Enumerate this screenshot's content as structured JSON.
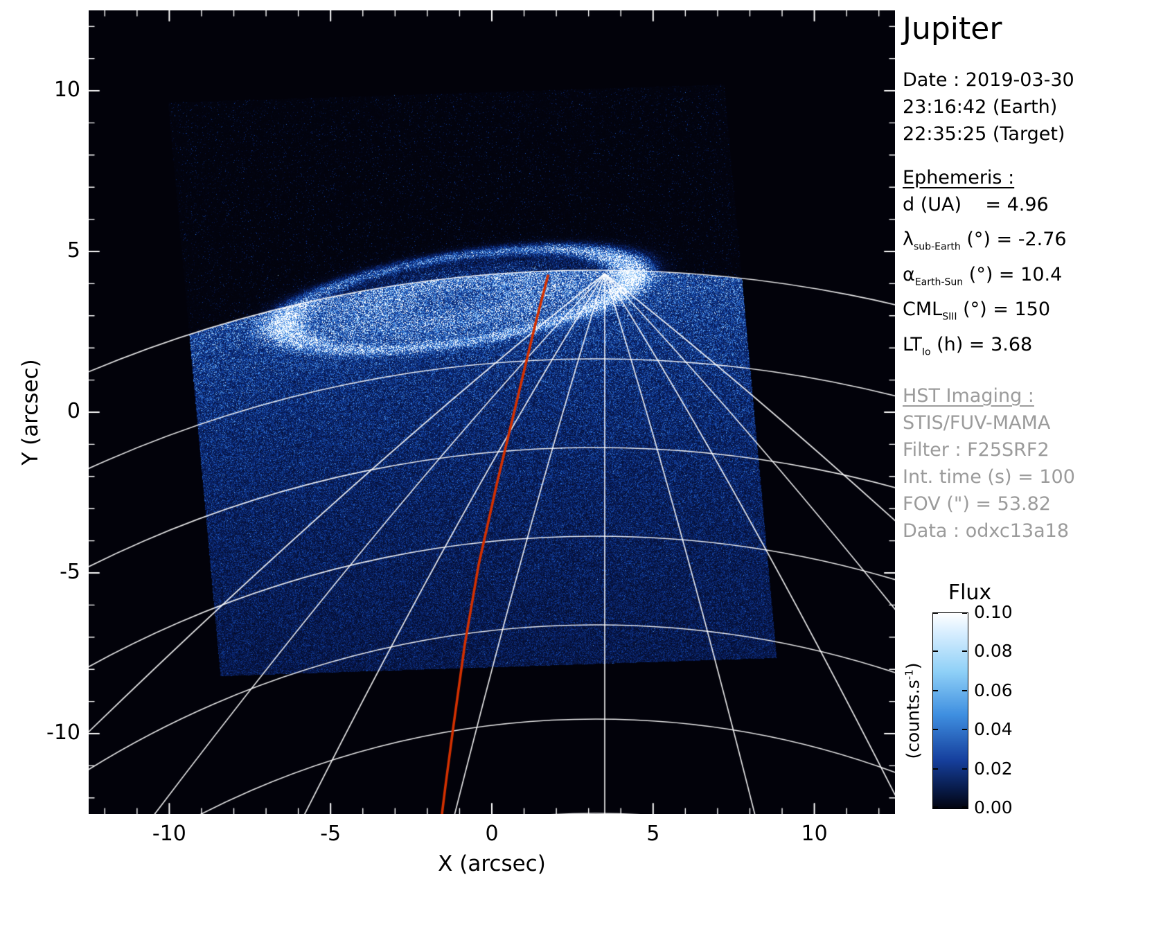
{
  "panel": {
    "title": "Jupiter",
    "date_lines": [
      "Date : 2019-03-30",
      "23:16:42 (Earth)",
      "22:35:25 (Target)"
    ],
    "ephemeris_header": "Ephemeris :",
    "ephemeris": [
      {
        "pre": "d (UA)",
        "sub": "",
        "post": "    = 4.96"
      },
      {
        "pre": "λ",
        "sub": "sub-Earth",
        "post": " (°) = -2.76"
      },
      {
        "pre": "α",
        "sub": "Earth-Sun",
        "post": " (°) = 10.4"
      },
      {
        "pre": "CML",
        "sub": "SIII",
        "post": " (°) = 150"
      },
      {
        "pre": "LT",
        "sub": "Io",
        "post": " (h) = 3.68"
      }
    ],
    "hst_header": "HST Imaging :",
    "hst_lines": [
      "STIS/FUV-MAMA",
      "Filter : F25SRF2",
      "Int. time (s) = 100",
      "FOV (\") = 53.82",
      "Data : odxc13a18"
    ]
  },
  "colorbar": {
    "title": "Flux",
    "unit_pre": "(counts.s",
    "unit_sup": "-1",
    "unit_post": ")",
    "ticks": [
      "0.10",
      "0.08",
      "0.06",
      "0.04",
      "0.02",
      "0.00"
    ]
  },
  "chart_data": {
    "type": "heatmap",
    "target": "Jupiter",
    "title": "Jupiter",
    "xlabel": "X (arcsec)",
    "ylabel": "Y (arcsec)",
    "xlim": [
      -12.5,
      12.5
    ],
    "ylim": [
      -12.5,
      12.5
    ],
    "xticks": [
      -10,
      -5,
      0,
      5,
      10
    ],
    "yticks": [
      10,
      5,
      0,
      -5,
      -10
    ],
    "grid": false,
    "colorbar": {
      "label": "Flux",
      "unit": "counts.s^-1",
      "range": [
        0.0,
        0.1
      ],
      "ticks": [
        0.1,
        0.08,
        0.06,
        0.04,
        0.02,
        0.0
      ],
      "colormap": "black-blue-white"
    },
    "overlays": [
      {
        "name": "planet-graticule",
        "color": "#ffffff",
        "description": "white latitude/longitude grid of Jupiter converging at north pole"
      },
      {
        "name": "magnetic-footpath-contour",
        "color": "#d23000",
        "description": "red curve from auroral oval down across the disk"
      },
      {
        "name": "stis-fov",
        "shape": "rotated-square",
        "description": "diamond-shaped detector field of view filled with speckled FUV counts"
      }
    ],
    "features": {
      "main_auroral_oval": "bright white emission oval near the north pole, brightest on its right (dusk) side with a secondary bright patch on the left",
      "disk_glow": "speckled blue dayglow filling the detector diamond, fading toward the lower corner",
      "sky": "black background above the limb with sparse faint counts"
    },
    "ephemeris_values": {
      "d_UA": 4.96,
      "lambda_sub_earth_deg": -2.76,
      "alpha_earth_sun_deg": 10.4,
      "CML_SIII_deg": 150,
      "LT_Io_h": 3.68,
      "int_time_s": 100,
      "FOV_arcsec": 53.82,
      "data_id": "odxc13a18",
      "date": "2019-03-30",
      "time_earth": "23:16:42",
      "time_target": "22:35:25"
    }
  }
}
